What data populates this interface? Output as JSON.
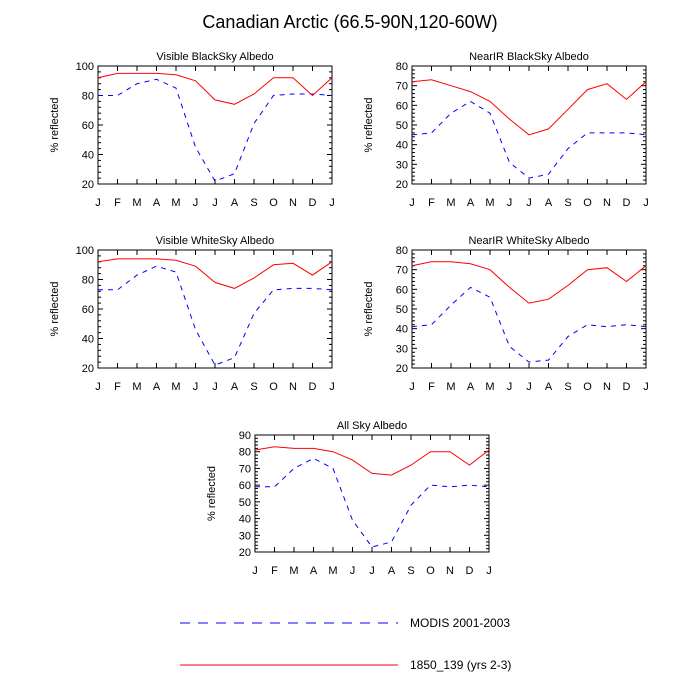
{
  "figure": {
    "title": "Canadian Arctic (66.5-90N,120-60W)"
  },
  "legend": [
    {
      "name": "MODIS 2001-2003",
      "color": "#0000ff",
      "dash": true
    },
    {
      "name": "1850_139 (yrs 2-3)",
      "color": "#ff0000",
      "dash": false
    }
  ],
  "chart_data": [
    {
      "type": "line",
      "title": "Visible BlackSky Albedo",
      "ylabel": "% reflected",
      "categories": [
        "J",
        "F",
        "M",
        "A",
        "M",
        "J",
        "J",
        "A",
        "S",
        "O",
        "N",
        "D",
        "J"
      ],
      "ylim": [
        20,
        100
      ],
      "yticks": [
        20,
        40,
        60,
        80,
        100
      ],
      "series": [
        {
          "name": "MODIS 2001-2003",
          "values": [
            80,
            80,
            88,
            91,
            85,
            45,
            22,
            27,
            61,
            80,
            81,
            81,
            80
          ]
        },
        {
          "name": "1850_139 (yrs 2-3)",
          "values": [
            92,
            95,
            95,
            95,
            94,
            90,
            77,
            74,
            81,
            92,
            92,
            80,
            92
          ]
        }
      ]
    },
    {
      "type": "line",
      "title": "NearIR BlackSky Albedo",
      "ylabel": "% reflected",
      "categories": [
        "J",
        "F",
        "M",
        "A",
        "M",
        "J",
        "J",
        "A",
        "S",
        "O",
        "N",
        "D",
        "J"
      ],
      "ylim": [
        20,
        80
      ],
      "yticks": [
        20,
        30,
        40,
        50,
        60,
        70,
        80
      ],
      "series": [
        {
          "name": "MODIS 2001-2003",
          "values": [
            45,
            46,
            56,
            62,
            56,
            31,
            23,
            25,
            38,
            46,
            46,
            46,
            45
          ]
        },
        {
          "name": "1850_139 (yrs 2-3)",
          "values": [
            72,
            73,
            70,
            67,
            62,
            53,
            45,
            48,
            58,
            68,
            71,
            63,
            72
          ]
        }
      ]
    },
    {
      "type": "line",
      "title": "Visible WhiteSky Albedo",
      "ylabel": "% reflected",
      "categories": [
        "J",
        "F",
        "M",
        "A",
        "M",
        "J",
        "J",
        "A",
        "S",
        "O",
        "N",
        "D",
        "J"
      ],
      "ylim": [
        20,
        100
      ],
      "yticks": [
        20,
        40,
        60,
        80,
        100
      ],
      "series": [
        {
          "name": "MODIS 2001-2003",
          "values": [
            73,
            73,
            83,
            89,
            85,
            46,
            22,
            27,
            57,
            73,
            74,
            74,
            73
          ]
        },
        {
          "name": "1850_139 (yrs 2-3)",
          "values": [
            92,
            94,
            94,
            94,
            93,
            89,
            78,
            74,
            81,
            90,
            91,
            83,
            92
          ]
        }
      ]
    },
    {
      "type": "line",
      "title": "NearIR WhiteSky Albedo",
      "ylabel": "% reflected",
      "categories": [
        "J",
        "F",
        "M",
        "A",
        "M",
        "J",
        "J",
        "A",
        "S",
        "O",
        "N",
        "D",
        "J"
      ],
      "ylim": [
        20,
        80
      ],
      "yticks": [
        20,
        30,
        40,
        50,
        60,
        70,
        80
      ],
      "series": [
        {
          "name": "MODIS 2001-2003",
          "values": [
            41,
            42,
            52,
            61,
            56,
            31,
            23,
            24,
            36,
            42,
            41,
            42,
            41
          ]
        },
        {
          "name": "1850_139 (yrs 2-3)",
          "values": [
            72,
            74,
            74,
            73,
            70,
            61,
            53,
            55,
            62,
            70,
            71,
            64,
            72
          ]
        }
      ]
    },
    {
      "type": "line",
      "title": "All Sky Albedo",
      "ylabel": "% reflected",
      "categories": [
        "J",
        "F",
        "M",
        "A",
        "M",
        "J",
        "J",
        "A",
        "S",
        "O",
        "N",
        "D",
        "J"
      ],
      "ylim": [
        20,
        90
      ],
      "yticks": [
        20,
        30,
        40,
        50,
        60,
        70,
        80,
        90
      ],
      "series": [
        {
          "name": "MODIS 2001-2003",
          "values": [
            59,
            59,
            70,
            76,
            70,
            39,
            23,
            26,
            48,
            60,
            59,
            60,
            59
          ]
        },
        {
          "name": "1850_139 (yrs 2-3)",
          "values": [
            81,
            83,
            82,
            82,
            80,
            75,
            67,
            66,
            72,
            80,
            80,
            72,
            81
          ]
        }
      ]
    }
  ]
}
